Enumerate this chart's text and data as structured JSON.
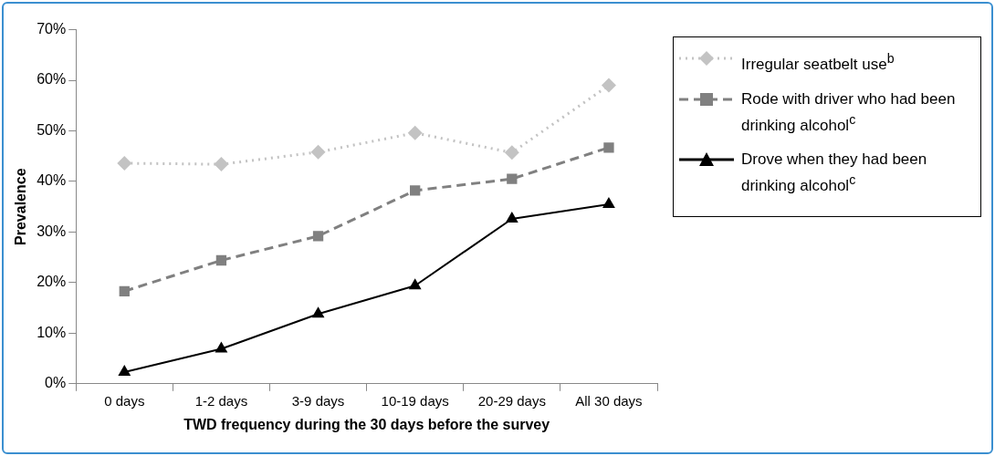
{
  "chart_data": {
    "type": "line",
    "xlabel": "TWD frequency during the 30 days before the survey",
    "ylabel": "Prevalence",
    "categories": [
      "0 days",
      "1-2 days",
      "3-9 days",
      "10-19 days",
      "20-29 days",
      "All 30 days"
    ],
    "series": [
      {
        "name": "Irregular seatbelt use$^{b}$",
        "color": "#c3c3c3",
        "marker": "diamond",
        "line_style": "dotted",
        "values": [
          43.6,
          43.4,
          45.8,
          49.6,
          45.7,
          59.0
        ]
      },
      {
        "name": "Rode with driver who had been drinking alcohol$^{c}$",
        "color": "#808080",
        "marker": "square",
        "line_style": "dashed",
        "values": [
          18.3,
          24.4,
          29.2,
          38.2,
          40.5,
          46.7
        ]
      },
      {
        "name": "Drove when they had been drinking alcohol$^{c}$",
        "color": "#000000",
        "marker": "triangle",
        "line_style": "solid",
        "values": [
          2.3,
          6.9,
          13.8,
          19.4,
          32.6,
          35.5
        ]
      }
    ],
    "ylim": [
      0,
      70
    ],
    "yticks": [
      {
        "value": 0,
        "label": "0%"
      },
      {
        "value": 10,
        "label": "10%"
      },
      {
        "value": 20,
        "label": "20%"
      },
      {
        "value": 30,
        "label": "30%"
      },
      {
        "value": 40,
        "label": "40%"
      },
      {
        "value": 50,
        "label": "50%"
      },
      {
        "value": 60,
        "label": "60%"
      },
      {
        "value": 70,
        "label": "70%"
      }
    ],
    "grid": false,
    "legend": "top right"
  }
}
